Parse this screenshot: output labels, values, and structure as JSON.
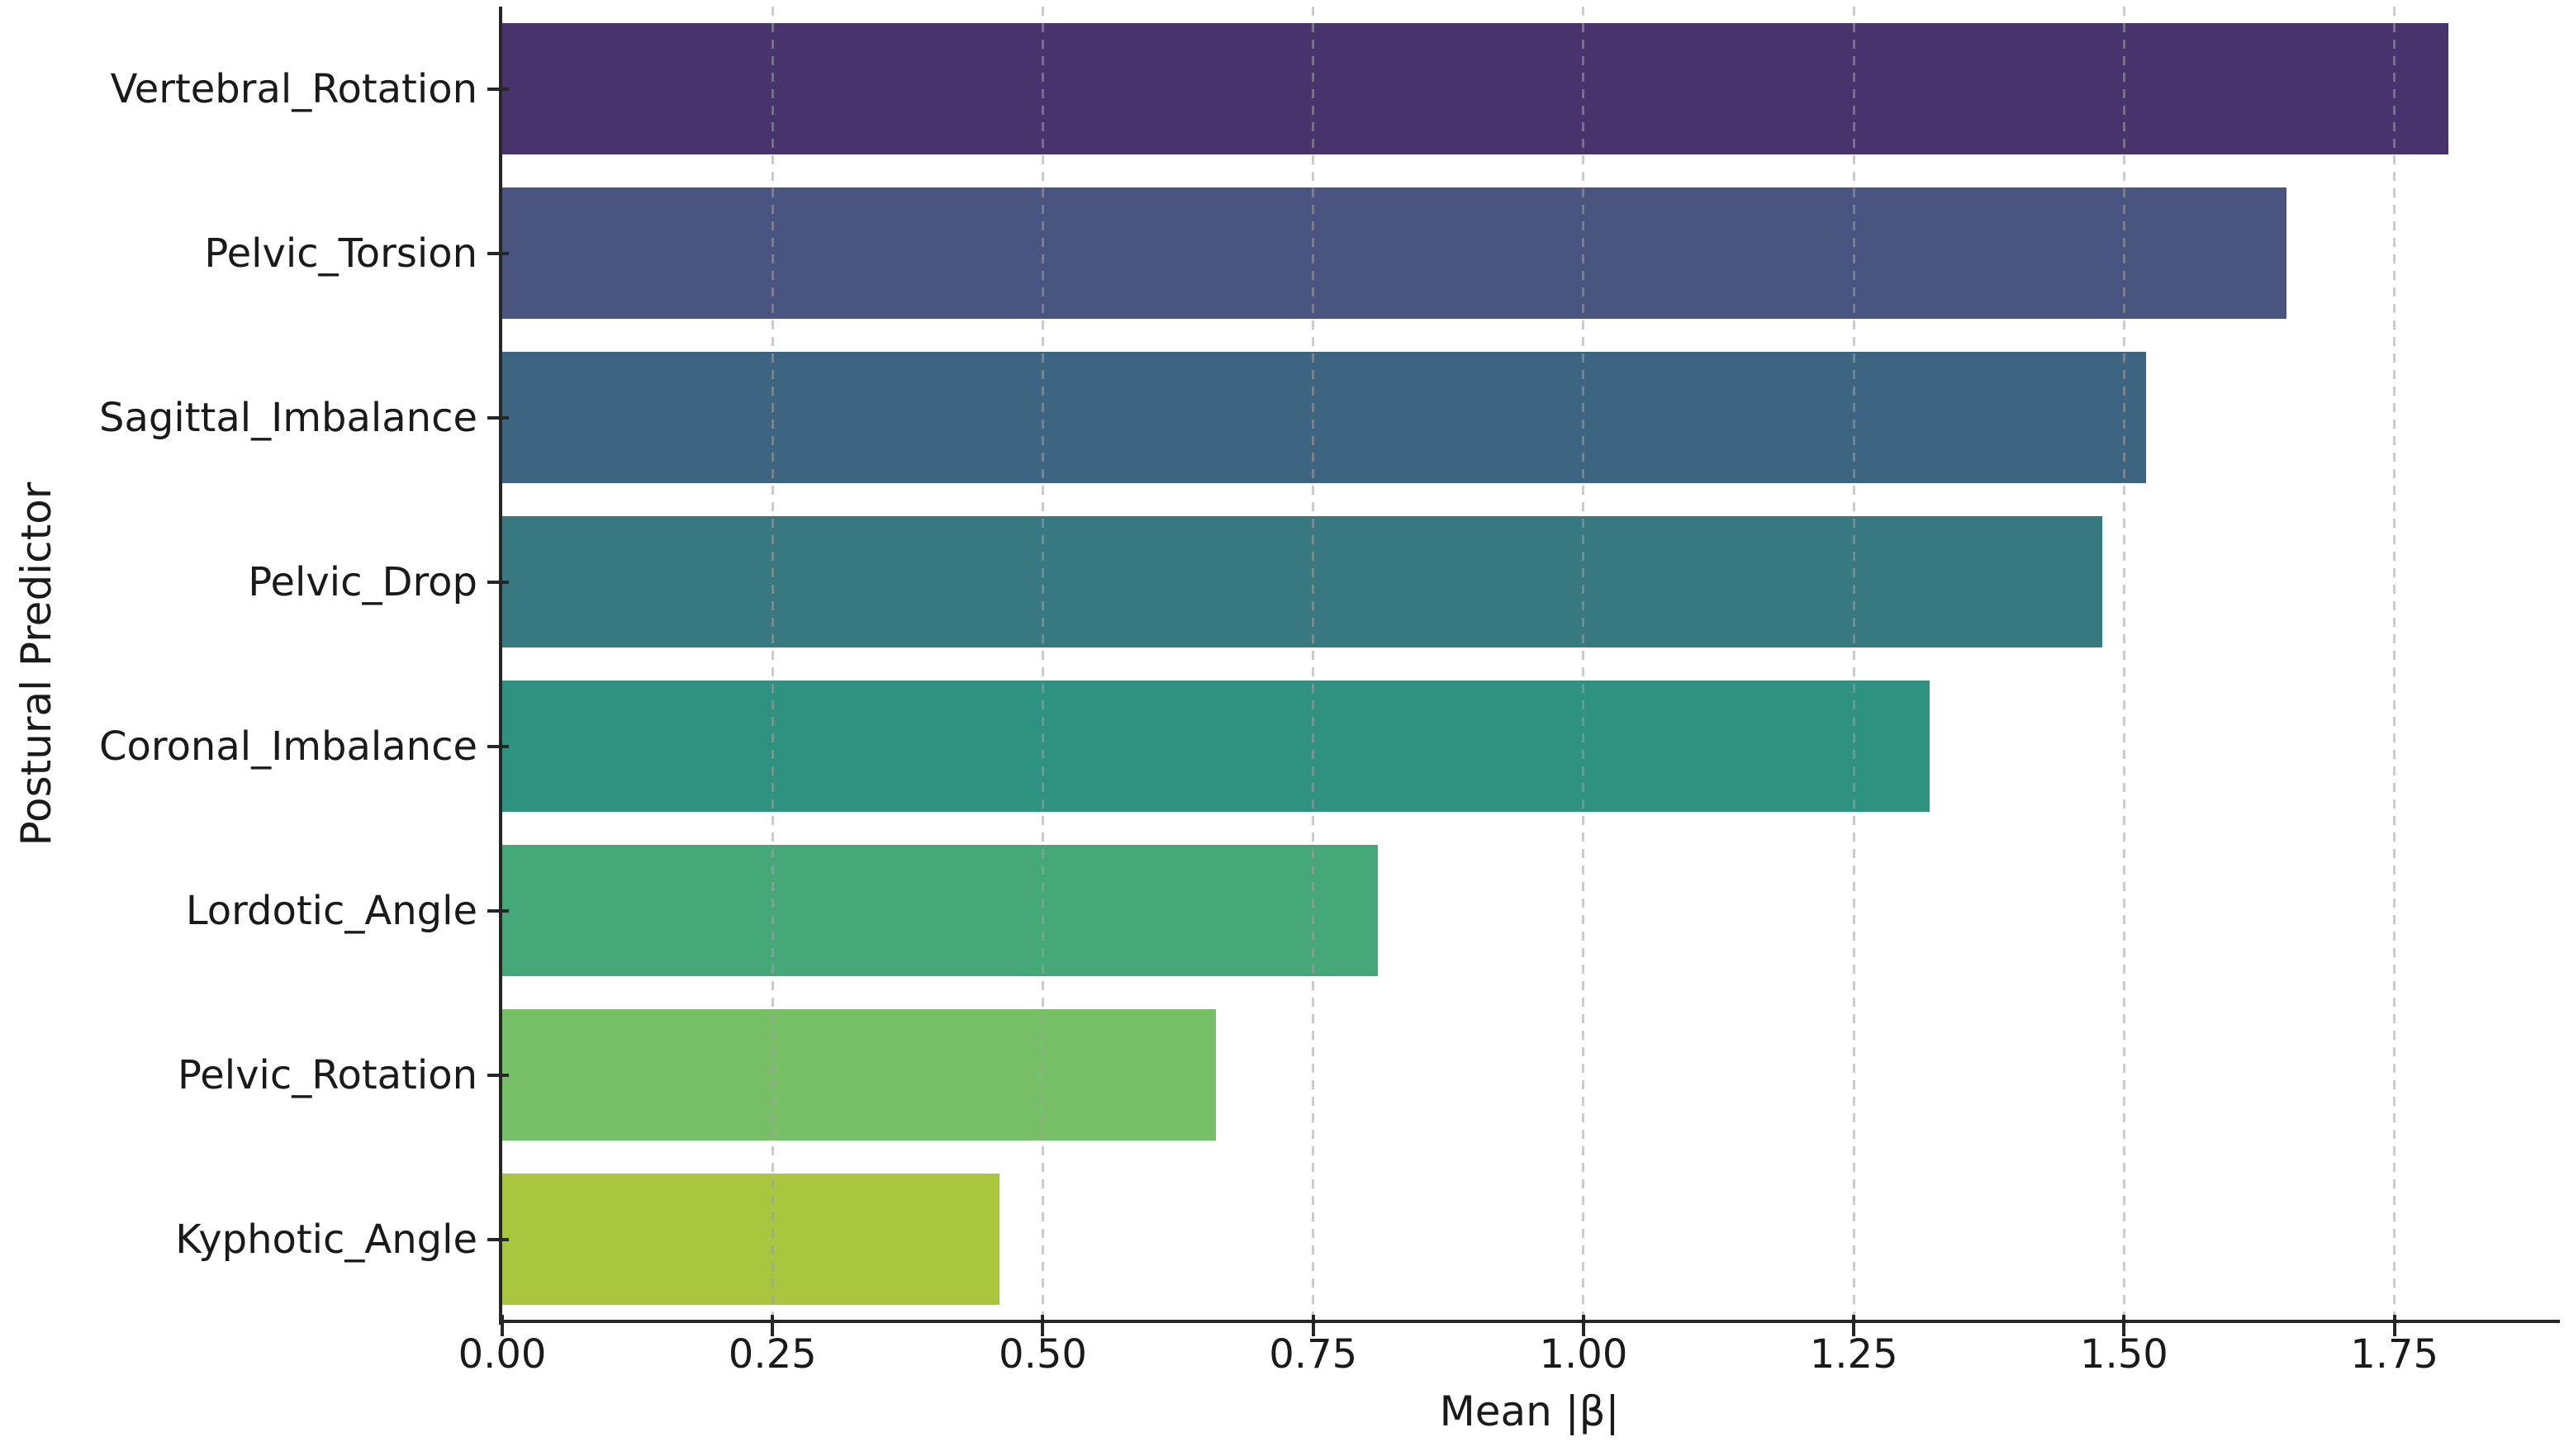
{
  "chart_data": {
    "type": "bar",
    "orientation": "horizontal",
    "categories": [
      "Vertebral_Rotation",
      "Pelvic_Torsion",
      "Sagittal_Imbalance",
      "Pelvic_Drop",
      "Coronal_Imbalance",
      "Lordotic_Angle",
      "Pelvic_Rotation",
      "Kyphotic_Angle"
    ],
    "values": [
      1.8,
      1.65,
      1.52,
      1.48,
      1.32,
      0.81,
      0.66,
      0.46
    ],
    "bar_colors": [
      "#48336d",
      "#4a5480",
      "#3d6581",
      "#377881",
      "#2f9180",
      "#45a878",
      "#76bf67",
      "#aac63e"
    ],
    "xlabel": "Mean |β|",
    "ylabel": "Postural Predictor",
    "xlim": [
      0,
      1.9
    ],
    "xticks": [
      0.0,
      0.25,
      0.5,
      0.75,
      1.0,
      1.25,
      1.5,
      1.75
    ],
    "xtick_labels": [
      "0.00",
      "0.25",
      "0.50",
      "0.75",
      "1.00",
      "1.25",
      "1.50",
      "1.75"
    ],
    "layout_hints": {
      "grid_axis": "x",
      "grid_style": "dashed",
      "grid_above_bars": true,
      "legend": "none",
      "spines": [
        "left",
        "bottom"
      ]
    }
  },
  "colors": {
    "background": "#ffffff",
    "spine": "#262626",
    "text": "#1a1a1a",
    "grid": "#cbcbcb"
  }
}
